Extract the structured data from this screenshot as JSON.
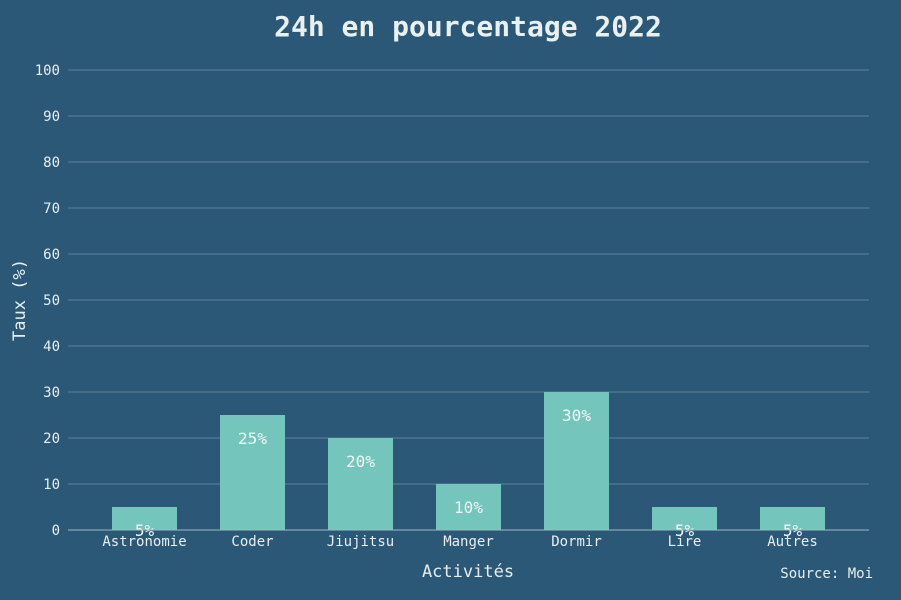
{
  "colors": {
    "background": "#2b5877",
    "bar": "#74c6bc",
    "text": "#e6eef0",
    "grid": "#5d8299"
  },
  "chart_data": {
    "type": "bar",
    "title": "24h en pourcentage 2022",
    "xlabel": "Activités",
    "ylabel": "Taux (%)",
    "categories": [
      "Astronomie",
      "Coder",
      "Jiujitsu",
      "Manger",
      "Dormir",
      "Lire",
      "Autres"
    ],
    "values": [
      5,
      25,
      20,
      10,
      30,
      5,
      5
    ],
    "value_labels": [
      "5%",
      "25%",
      "20%",
      "10%",
      "30%",
      "5%",
      "5%"
    ],
    "ylim": [
      0,
      100
    ],
    "yticks": [
      0,
      10,
      20,
      30,
      40,
      50,
      60,
      70,
      80,
      90,
      100
    ],
    "grid": true,
    "source": "Source: Moi"
  }
}
